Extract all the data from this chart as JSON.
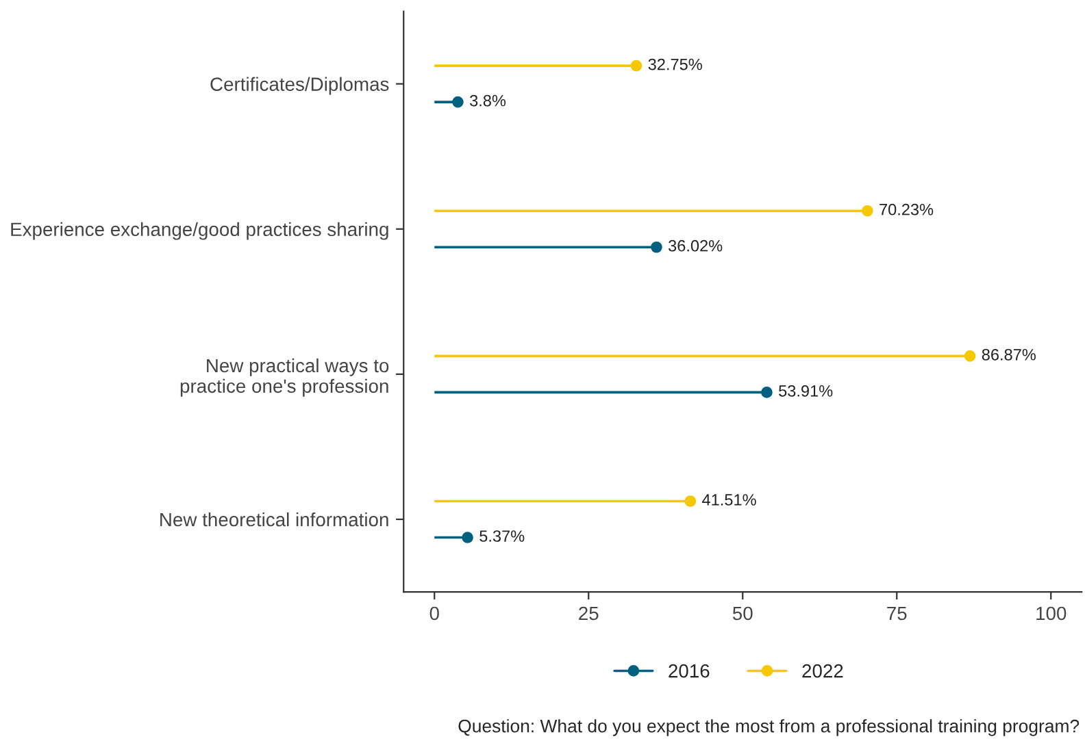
{
  "chart_data": {
    "type": "lollipop",
    "orientation": "horizontal",
    "categories": [
      "Certificates/Diplomas",
      "Experience exchange/good practices sharing",
      "New practical ways to\npractice one's profession",
      "New theoretical information"
    ],
    "series": [
      {
        "name": "2016",
        "color": "#00607f",
        "values": [
          3.8,
          36.02,
          53.91,
          5.37
        ],
        "value_labels": [
          "3.8%",
          "36.02%",
          "53.91%",
          "5.37%"
        ]
      },
      {
        "name": "2022",
        "color": "#f5c800",
        "values": [
          32.75,
          70.23,
          86.87,
          41.51
        ],
        "value_labels": [
          "32.75%",
          "70.23%",
          "86.87%",
          "41.51%"
        ]
      }
    ],
    "xlim": [
      -5,
      105
    ],
    "xticks": [
      0,
      25,
      50,
      75,
      100
    ],
    "marker": "circle",
    "grid": false,
    "legend": "bottom",
    "annotations": [
      "Question: What do you expect the most from a professional training program?"
    ]
  }
}
